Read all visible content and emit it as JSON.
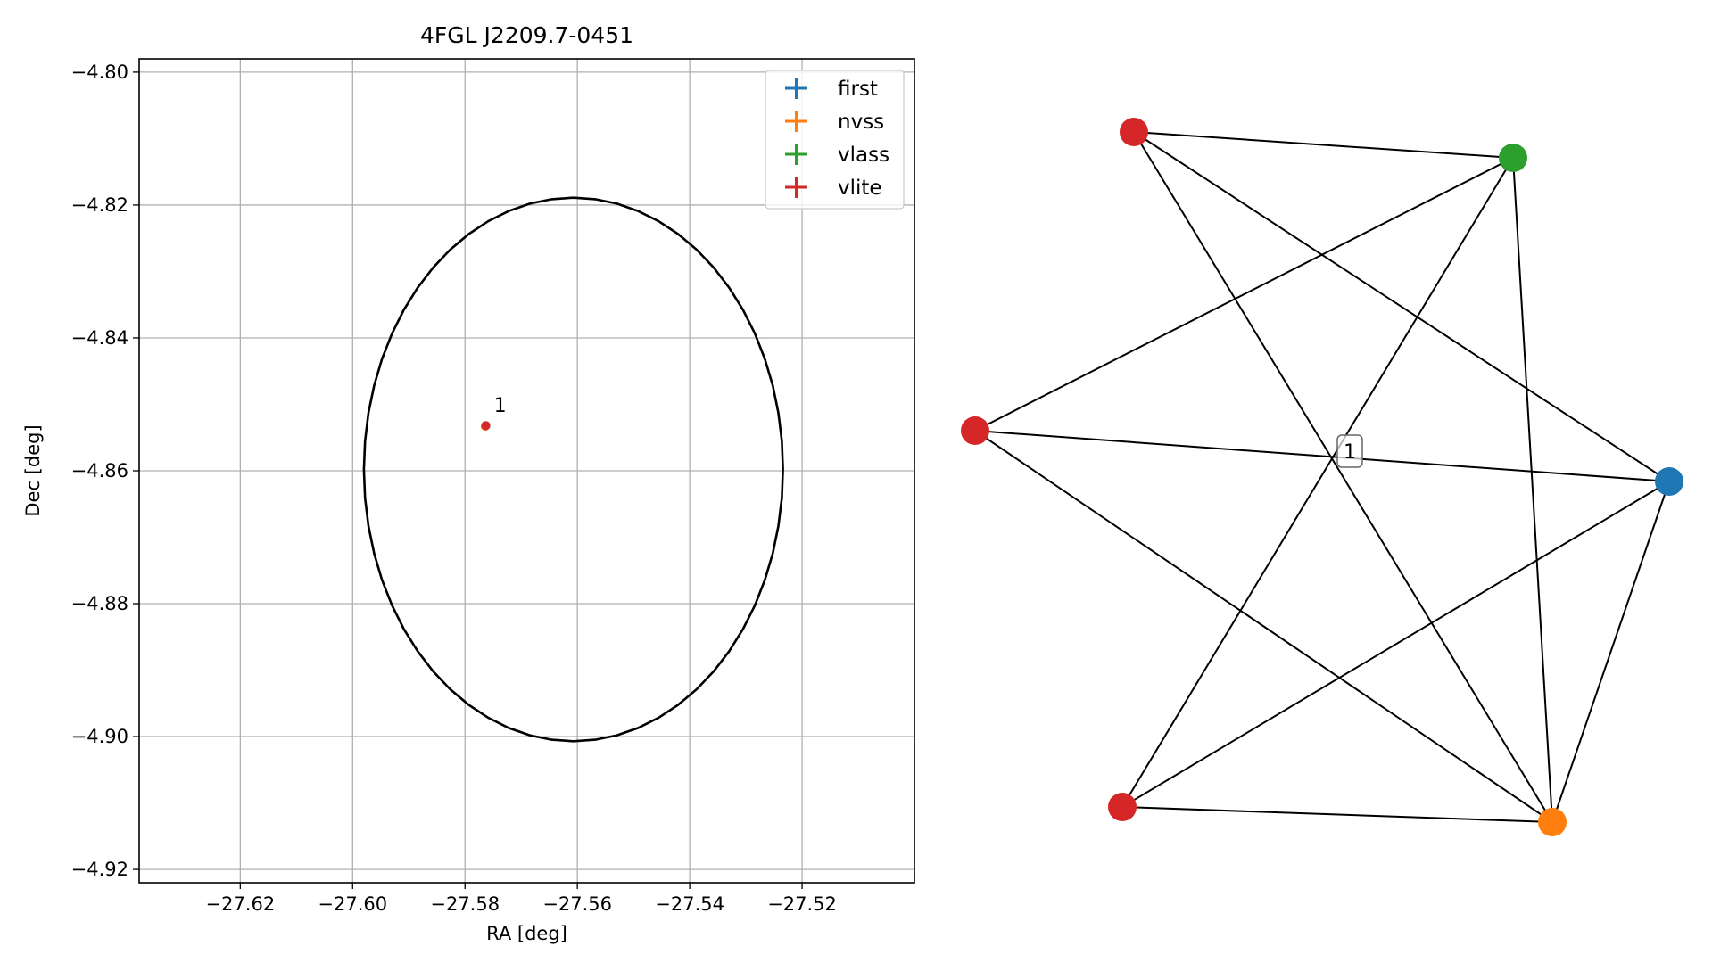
{
  "chart_data": [
    {
      "type": "scatter",
      "title": "4FGL J2209.7-0451",
      "xlabel": "RA [deg]",
      "ylabel": "Dec [deg]",
      "xlim": [
        -27.638,
        -27.5
      ],
      "ylim": [
        -4.922,
        -4.798
      ],
      "xticks": [
        -27.62,
        -27.6,
        -27.58,
        -27.56,
        -27.54,
        -27.52
      ],
      "xtick_labels": [
        "−27.62",
        "−27.60",
        "−27.58",
        "−27.56",
        "−27.54",
        "−27.52"
      ],
      "yticks": [
        -4.8,
        -4.82,
        -4.84,
        -4.86,
        -4.88,
        -4.9,
        -4.92
      ],
      "ytick_labels": [
        "−4.80",
        "−4.82",
        "−4.84",
        "−4.86",
        "−4.88",
        "−4.90",
        "−4.92"
      ],
      "grid": true,
      "legend_position": "top-right",
      "series": [
        {
          "name": "first",
          "color": "#1f77b4",
          "x": [
            -27.5763
          ],
          "y": [
            -4.8532
          ]
        },
        {
          "name": "nvss",
          "color": "#ff7f0e",
          "x": [
            -27.5764
          ],
          "y": [
            -4.8533
          ]
        },
        {
          "name": "vlass",
          "color": "#2ca02c",
          "x": [
            -27.5763
          ],
          "y": [
            -4.8532
          ]
        },
        {
          "name": "vlite",
          "color": "#d62728",
          "x": [
            -27.5763
          ],
          "y": [
            -4.8532
          ]
        }
      ],
      "ellipse": {
        "center_ra": -27.5607,
        "center_dec": -4.8598,
        "semi_axis_ra": 0.0373,
        "semi_axis_dec": 0.0409,
        "color": "#000000"
      },
      "annotations": [
        {
          "text": "1",
          "x": -27.5755,
          "y": -4.8517
        }
      ]
    },
    {
      "type": "network",
      "nodes": [
        {
          "id": "n1",
          "color": "#d62728"
        },
        {
          "id": "n2",
          "color": "#2ca02c"
        },
        {
          "id": "n3",
          "color": "#d62728"
        },
        {
          "id": "n4",
          "color": "#1f77b4"
        },
        {
          "id": "n5",
          "color": "#d62728"
        },
        {
          "id": "n6",
          "color": "#ff7f0e"
        }
      ],
      "edges": [
        [
          "n1",
          "n2"
        ],
        [
          "n1",
          "n4"
        ],
        [
          "n1",
          "n6"
        ],
        [
          "n2",
          "n3"
        ],
        [
          "n2",
          "n5"
        ],
        [
          "n2",
          "n6"
        ],
        [
          "n3",
          "n4"
        ],
        [
          "n3",
          "n6"
        ],
        [
          "n4",
          "n5"
        ],
        [
          "n4",
          "n6"
        ],
        [
          "n5",
          "n6"
        ]
      ],
      "label": "1"
    }
  ]
}
